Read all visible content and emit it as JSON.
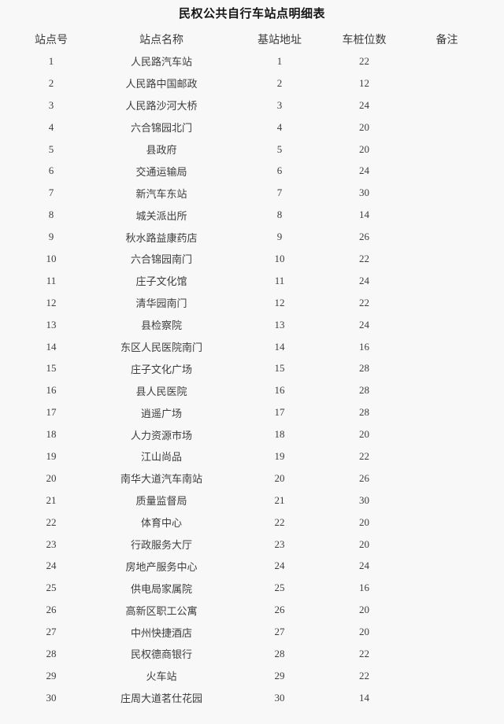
{
  "title": "民权公共自行车站点明细表",
  "table": {
    "headers": [
      "站点号",
      "站点名称",
      "基站地址",
      "车桩位数",
      "备注"
    ],
    "rows": [
      {
        "station_no": "1",
        "name": "人民路汽车站",
        "base_address": "1",
        "piles": "22",
        "remark": ""
      },
      {
        "station_no": "2",
        "name": "人民路中国邮政",
        "base_address": "2",
        "piles": "12",
        "remark": ""
      },
      {
        "station_no": "3",
        "name": "人民路沙河大桥",
        "base_address": "3",
        "piles": "24",
        "remark": ""
      },
      {
        "station_no": "4",
        "name": "六合锦园北门",
        "base_address": "4",
        "piles": "20",
        "remark": ""
      },
      {
        "station_no": "5",
        "name": "县政府",
        "base_address": "5",
        "piles": "20",
        "remark": ""
      },
      {
        "station_no": "6",
        "name": "交通运输局",
        "base_address": "6",
        "piles": "24",
        "remark": ""
      },
      {
        "station_no": "7",
        "name": "新汽车东站",
        "base_address": "7",
        "piles": "30",
        "remark": ""
      },
      {
        "station_no": "8",
        "name": "城关派出所",
        "base_address": "8",
        "piles": "14",
        "remark": ""
      },
      {
        "station_no": "9",
        "name": "秋水路益康药店",
        "base_address": "9",
        "piles": "26",
        "remark": ""
      },
      {
        "station_no": "10",
        "name": "六合锦园南门",
        "base_address": "10",
        "piles": "22",
        "remark": ""
      },
      {
        "station_no": "11",
        "name": "庄子文化馆",
        "base_address": "11",
        "piles": "24",
        "remark": ""
      },
      {
        "station_no": "12",
        "name": "清华园南门",
        "base_address": "12",
        "piles": "22",
        "remark": ""
      },
      {
        "station_no": "13",
        "name": "县检察院",
        "base_address": "13",
        "piles": "24",
        "remark": ""
      },
      {
        "station_no": "14",
        "name": "东区人民医院南门",
        "base_address": "14",
        "piles": "16",
        "remark": ""
      },
      {
        "station_no": "15",
        "name": "庄子文化广场",
        "base_address": "15",
        "piles": "28",
        "remark": ""
      },
      {
        "station_no": "16",
        "name": "县人民医院",
        "base_address": "16",
        "piles": "28",
        "remark": ""
      },
      {
        "station_no": "17",
        "name": "逍遥广场",
        "base_address": "17",
        "piles": "28",
        "remark": ""
      },
      {
        "station_no": "18",
        "name": "人力资源市场",
        "base_address": "18",
        "piles": "20",
        "remark": ""
      },
      {
        "station_no": "19",
        "name": "江山尚品",
        "base_address": "19",
        "piles": "22",
        "remark": ""
      },
      {
        "station_no": "20",
        "name": "南华大道汽车南站",
        "base_address": "20",
        "piles": "26",
        "remark": ""
      },
      {
        "station_no": "21",
        "name": "质量监督局",
        "base_address": "21",
        "piles": "30",
        "remark": ""
      },
      {
        "station_no": "22",
        "name": "体育中心",
        "base_address": "22",
        "piles": "20",
        "remark": ""
      },
      {
        "station_no": "23",
        "name": "行政服务大厅",
        "base_address": "23",
        "piles": "20",
        "remark": ""
      },
      {
        "station_no": "24",
        "name": "房地产服务中心",
        "base_address": "24",
        "piles": "24",
        "remark": ""
      },
      {
        "station_no": "25",
        "name": "供电局家属院",
        "base_address": "25",
        "piles": "16",
        "remark": ""
      },
      {
        "station_no": "26",
        "name": "高新区职工公寓",
        "base_address": "26",
        "piles": "20",
        "remark": ""
      },
      {
        "station_no": "27",
        "name": "中州快捷酒店",
        "base_address": "27",
        "piles": "20",
        "remark": ""
      },
      {
        "station_no": "28",
        "name": "民权德商银行",
        "base_address": "28",
        "piles": "22",
        "remark": ""
      },
      {
        "station_no": "29",
        "name": "火车站",
        "base_address": "29",
        "piles": "22",
        "remark": ""
      },
      {
        "station_no": "30",
        "name": "庄周大道茗仕花园",
        "base_address": "30",
        "piles": "14",
        "remark": ""
      }
    ]
  }
}
